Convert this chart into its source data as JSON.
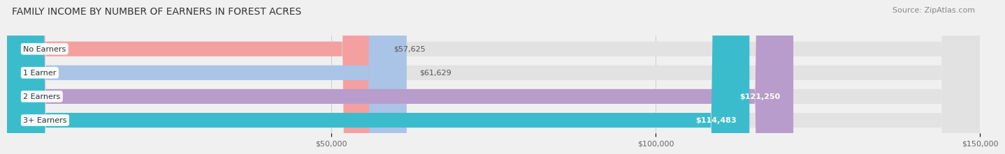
{
  "title": "FAMILY INCOME BY NUMBER OF EARNERS IN FOREST ACRES",
  "source": "Source: ZipAtlas.com",
  "categories": [
    "No Earners",
    "1 Earner",
    "2 Earners",
    "3+ Earners"
  ],
  "values": [
    57625,
    61629,
    121250,
    114483
  ],
  "labels": [
    "$57,625",
    "$61,629",
    "$121,250",
    "$114,483"
  ],
  "bar_colors": [
    "#f4a0a0",
    "#aac4e8",
    "#b89ccc",
    "#3bbccc"
  ],
  "label_colors": [
    "#555555",
    "#555555",
    "#ffffff",
    "#ffffff"
  ],
  "bg_color": "#f0f0f0",
  "bar_bg_color": "#e2e2e2",
  "xmin": 0,
  "xmax": 150000,
  "xticks": [
    50000,
    100000,
    150000
  ],
  "xtick_labels": [
    "$50,000",
    "$100,000",
    "$150,000"
  ],
  "title_fontsize": 10,
  "source_fontsize": 8,
  "bar_label_fontsize": 8,
  "category_fontsize": 8,
  "tick_fontsize": 8
}
